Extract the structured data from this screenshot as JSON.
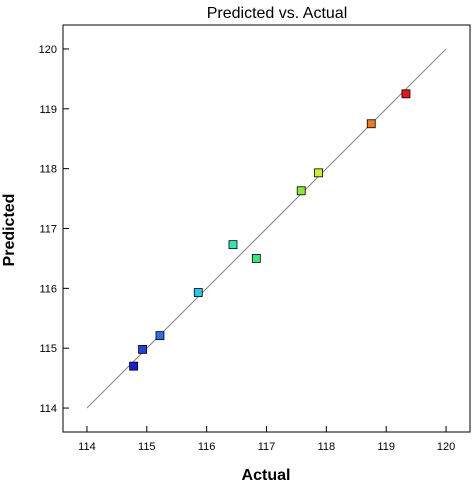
{
  "chart_data": {
    "type": "scatter",
    "title": "Predicted vs. Actual",
    "xlabel": "Actual",
    "ylabel": "Predicted",
    "xlim": [
      113.6,
      120.4
    ],
    "ylim": [
      113.6,
      120.4
    ],
    "xticks": [
      "114",
      "115",
      "116",
      "117",
      "118",
      "119",
      "120"
    ],
    "yticks": [
      "114",
      "115",
      "116",
      "117",
      "118",
      "119",
      "120"
    ],
    "grid": false,
    "reference_line": {
      "from": [
        114,
        114
      ],
      "to": [
        120,
        120
      ],
      "color": "#808080"
    },
    "points": [
      {
        "x": 114.78,
        "y": 114.7,
        "color": "#1a1adc"
      },
      {
        "x": 114.93,
        "y": 114.98,
        "color": "#2040e0"
      },
      {
        "x": 115.22,
        "y": 115.21,
        "color": "#2e6fe0"
      },
      {
        "x": 115.86,
        "y": 115.93,
        "color": "#28c8e8"
      },
      {
        "x": 116.44,
        "y": 116.73,
        "color": "#2ee8b0"
      },
      {
        "x": 116.83,
        "y": 116.5,
        "color": "#3ce870"
      },
      {
        "x": 117.58,
        "y": 117.63,
        "color": "#8ae838"
      },
      {
        "x": 117.87,
        "y": 117.93,
        "color": "#c8f030"
      },
      {
        "x": 118.75,
        "y": 118.75,
        "color": "#f07a20"
      },
      {
        "x": 119.33,
        "y": 119.25,
        "color": "#e81818"
      }
    ]
  }
}
